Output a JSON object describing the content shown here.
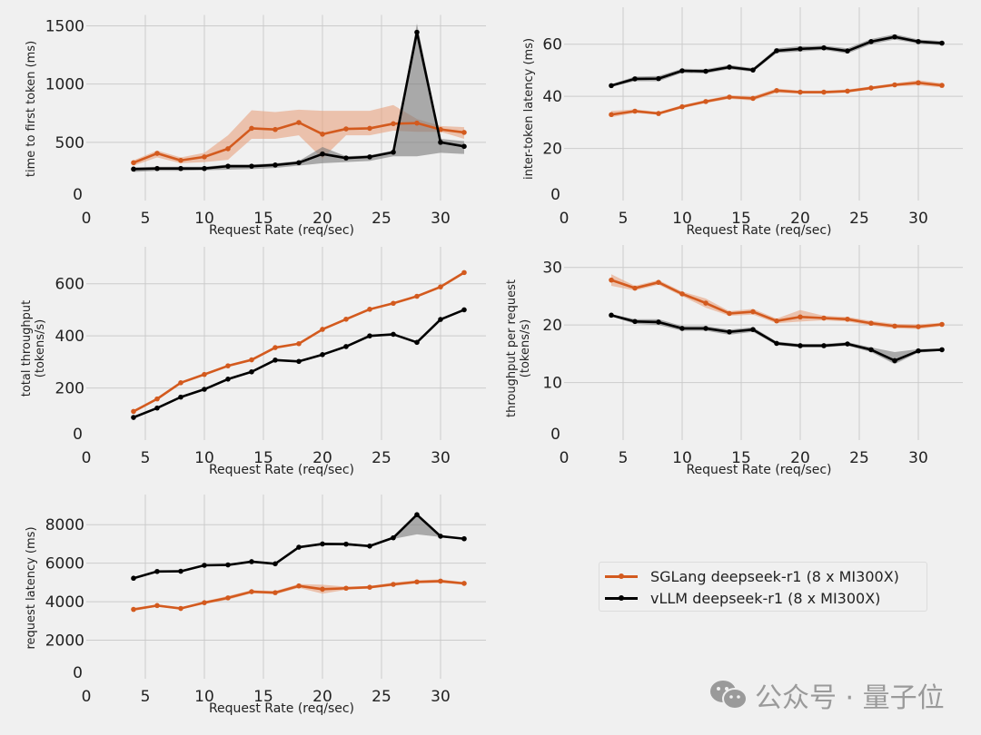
{
  "colors": {
    "sglang": "#d35a1e",
    "sglang_band": "#e8a27e",
    "vllm": "#000000",
    "vllm_band": "#7a7a7a",
    "background": "#f0f0f0",
    "grid": "#cbcbcb"
  },
  "legend": {
    "items": [
      {
        "label": "SGLang deepseek-r1 (8 x MI300X)",
        "series": "sglang"
      },
      {
        "label": "vLLM deepseek-r1 (8 x MI300X)",
        "series": "vllm"
      }
    ]
  },
  "watermark": {
    "icon": "wechat-icon",
    "text": "公众号 · 量子位"
  },
  "chart_data": [
    {
      "id": "ttft",
      "type": "line",
      "title": "",
      "xlabel": "Request Rate (req/sec)",
      "ylabel": "time to first token (ms)",
      "ylim": [
        0,
        1500
      ],
      "xlim": [
        0,
        34
      ],
      "yticks": [
        0,
        500,
        1000,
        1500
      ],
      "xticks": [
        0,
        5,
        10,
        15,
        20,
        25,
        30
      ],
      "grid": true,
      "x": [
        4,
        6,
        8,
        10,
        12,
        14,
        16,
        18,
        20,
        22,
        24,
        26,
        28,
        30,
        32
      ],
      "series": [
        {
          "name": "SGLang deepseek-r1 (8 x MI300X)",
          "key": "sglang",
          "values": [
            325,
            405,
            345,
            375,
            445,
            620,
            610,
            670,
            570,
            615,
            620,
            660,
            665,
            610,
            585
          ],
          "lower": [
            300,
            370,
            320,
            330,
            350,
            530,
            530,
            560,
            360,
            560,
            560,
            600,
            590,
            590,
            530
          ],
          "upper": [
            345,
            430,
            370,
            410,
            560,
            775,
            760,
            780,
            770,
            770,
            770,
            820,
            700,
            640,
            630
          ]
        },
        {
          "name": "vLLM deepseek-r1 (8 x MI300X)",
          "key": "vllm",
          "values": [
            270,
            275,
            275,
            275,
            295,
            295,
            305,
            325,
            400,
            365,
            375,
            415,
            1445,
            500,
            465
          ],
          "lower": [
            245,
            255,
            255,
            260,
            265,
            270,
            280,
            300,
            320,
            330,
            340,
            380,
            380,
            410,
            400
          ],
          "upper": [
            285,
            290,
            290,
            290,
            310,
            310,
            320,
            340,
            460,
            380,
            390,
            430,
            1520,
            530,
            510
          ]
        }
      ]
    },
    {
      "id": "itl",
      "type": "line",
      "title": "",
      "xlabel": "Request Rate (req/sec)",
      "ylabel": "inter-token latency (ms)",
      "ylim": [
        0,
        70
      ],
      "xlim": [
        0,
        34
      ],
      "yticks": [
        0,
        20,
        40,
        60
      ],
      "xticks": [
        0,
        5,
        10,
        15,
        20,
        25,
        30
      ],
      "grid": true,
      "x": [
        4,
        6,
        8,
        10,
        12,
        14,
        16,
        18,
        20,
        22,
        24,
        26,
        28,
        30,
        32
      ],
      "series": [
        {
          "name": "SGLang deepseek-r1 (8 x MI300X)",
          "key": "sglang",
          "values": [
            33.0,
            34.3,
            33.4,
            36.0,
            38.0,
            39.7,
            39.2,
            42.2,
            41.6,
            41.6,
            42.0,
            43.2,
            44.4,
            45.2,
            44.2
          ],
          "lower": [
            32.0,
            33.6,
            32.9,
            35.4,
            37.4,
            39.0,
            38.4,
            41.4,
            41.0,
            41.0,
            41.4,
            42.6,
            43.8,
            44.2,
            43.4
          ],
          "upper": [
            34.4,
            35.0,
            34.0,
            36.6,
            38.6,
            40.4,
            40.0,
            43.0,
            42.2,
            42.2,
            42.6,
            43.8,
            45.0,
            46.2,
            45.0
          ]
        },
        {
          "name": "vLLM deepseek-r1 (8 x MI300X)",
          "key": "vllm",
          "values": [
            44.1,
            46.7,
            46.8,
            49.8,
            49.6,
            51.2,
            50.1,
            57.5,
            58.2,
            58.6,
            57.4,
            61.0,
            62.8,
            61.0,
            60.4
          ],
          "lower": [
            43.6,
            45.8,
            45.8,
            49.0,
            48.8,
            50.4,
            49.4,
            56.6,
            57.2,
            57.8,
            56.4,
            60.0,
            61.8,
            60.2,
            59.6
          ],
          "upper": [
            44.6,
            47.6,
            47.8,
            50.6,
            50.4,
            52.0,
            50.8,
            58.4,
            59.2,
            59.4,
            58.4,
            62.0,
            63.8,
            61.8,
            61.2
          ]
        }
      ]
    },
    {
      "id": "total_throughput",
      "type": "line",
      "title": "",
      "xlabel": "Request Rate (req/sec)",
      "ylabel": "total throughput\n(tokens/s)",
      "ylim": [
        0,
        700
      ],
      "xlim": [
        0,
        34
      ],
      "yticks": [
        0,
        200,
        400,
        600
      ],
      "xticks": [
        0,
        5,
        10,
        15,
        20,
        25,
        30
      ],
      "grid": true,
      "x": [
        4,
        6,
        8,
        10,
        12,
        14,
        16,
        18,
        20,
        22,
        24,
        26,
        28,
        30,
        32
      ],
      "series": [
        {
          "name": "SGLang deepseek-r1 (8 x MI300X)",
          "key": "sglang",
          "values": [
            110,
            158,
            220,
            252,
            285,
            308,
            355,
            370,
            425,
            464,
            502,
            525,
            552,
            588,
            643
          ]
        },
        {
          "name": "vLLM deepseek-r1 (8 x MI300X)",
          "key": "vllm",
          "values": [
            87,
            123,
            165,
            195,
            234,
            262,
            307,
            302,
            328,
            359,
            400,
            406,
            375,
            463,
            500
          ]
        }
      ]
    },
    {
      "id": "throughput_per_request",
      "type": "line",
      "title": "",
      "xlabel": "Request Rate (req/sec)",
      "ylabel": "throughput per request\n(tokens/s)",
      "ylim": [
        0,
        32
      ],
      "xlim": [
        0,
        34
      ],
      "yticks": [
        0,
        10,
        20,
        30
      ],
      "xticks": [
        0,
        5,
        10,
        15,
        20,
        25,
        30
      ],
      "grid": true,
      "x": [
        4,
        6,
        8,
        10,
        12,
        14,
        16,
        18,
        20,
        22,
        24,
        26,
        28,
        30,
        32
      ],
      "series": [
        {
          "name": "SGLang deepseek-r1 (8 x MI300X)",
          "key": "sglang",
          "values": [
            27.8,
            26.4,
            27.4,
            25.4,
            23.8,
            22.0,
            22.3,
            20.7,
            21.4,
            21.2,
            21.0,
            20.3,
            19.8,
            19.7,
            20.1
          ],
          "lower": [
            26.8,
            26.0,
            27.0,
            25.0,
            23.0,
            21.6,
            21.8,
            20.3,
            20.6,
            20.8,
            20.6,
            19.9,
            19.4,
            19.3,
            19.8
          ],
          "upper": [
            28.8,
            26.8,
            27.8,
            25.8,
            24.6,
            22.4,
            22.8,
            21.1,
            22.6,
            21.6,
            21.4,
            20.7,
            20.2,
            20.1,
            20.4
          ]
        },
        {
          "name": "vLLM deepseek-r1 (8 x MI300X)",
          "key": "vllm",
          "values": [
            21.7,
            20.6,
            20.5,
            19.4,
            19.4,
            18.8,
            19.2,
            16.8,
            16.4,
            16.4,
            16.7,
            15.7,
            13.8,
            15.5,
            15.7
          ],
          "lower": [
            21.5,
            20.2,
            20.0,
            19.0,
            19.0,
            18.3,
            18.8,
            16.5,
            16.1,
            16.1,
            16.4,
            15.3,
            13.2,
            15.2,
            15.5
          ],
          "upper": [
            21.9,
            21.0,
            21.0,
            19.8,
            19.8,
            19.2,
            19.6,
            17.1,
            16.7,
            16.7,
            17.0,
            16.1,
            15.3,
            15.8,
            15.9
          ]
        }
      ]
    },
    {
      "id": "request_latency",
      "type": "line",
      "title": "",
      "xlabel": "Request Rate (req/sec)",
      "ylabel": "request latency (ms)",
      "ylim": [
        0,
        9000
      ],
      "xlim": [
        0,
        34
      ],
      "yticks": [
        0,
        2000,
        4000,
        6000,
        8000
      ],
      "xticks": [
        0,
        5,
        10,
        15,
        20,
        25,
        30
      ],
      "grid": true,
      "x": [
        4,
        6,
        8,
        10,
        12,
        14,
        16,
        18,
        20,
        22,
        24,
        26,
        28,
        30,
        32
      ],
      "series": [
        {
          "name": "SGLang deepseek-r1 (8 x MI300X)",
          "key": "sglang",
          "values": [
            3600,
            3800,
            3650,
            3950,
            4200,
            4520,
            4470,
            4820,
            4650,
            4700,
            4750,
            4900,
            5030,
            5070,
            4950
          ],
          "lower": [
            3520,
            3740,
            3600,
            3880,
            4100,
            4440,
            4380,
            4720,
            4420,
            4620,
            4680,
            4820,
            4950,
            4980,
            4880
          ],
          "upper": [
            3680,
            3860,
            3700,
            4020,
            4300,
            4600,
            4560,
            4920,
            4880,
            4780,
            4820,
            5000,
            5110,
            5160,
            5020
          ]
        },
        {
          "name": "vLLM deepseek-r1 (8 x MI300X)",
          "key": "vllm",
          "values": [
            5220,
            5570,
            5580,
            5890,
            5910,
            6080,
            5970,
            6830,
            7000,
            6990,
            6890,
            7320,
            8520,
            7400,
            7270
          ],
          "lower": [
            5200,
            5540,
            5550,
            5860,
            5880,
            6040,
            5940,
            6790,
            6940,
            6920,
            6850,
            7260,
            7500,
            7360,
            7240
          ],
          "upper": [
            5240,
            5600,
            5610,
            5920,
            5940,
            6120,
            6000,
            6870,
            7060,
            7060,
            6930,
            7380,
            8560,
            7440,
            7300
          ]
        }
      ]
    }
  ]
}
